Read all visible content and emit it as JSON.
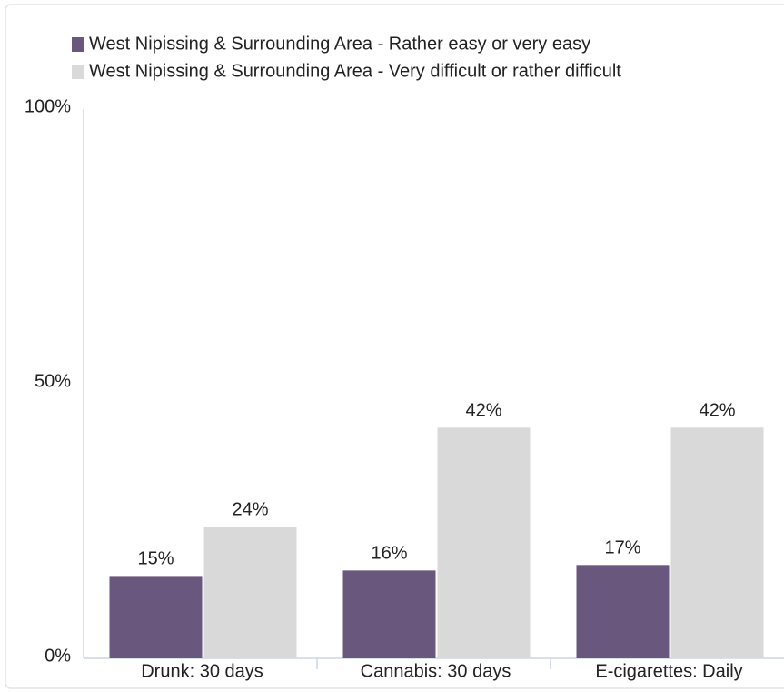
{
  "chart_data": {
    "type": "bar",
    "categories": [
      "Drunk: 30 days",
      "Cannabis: 30 days",
      "E-cigarettes: Daily"
    ],
    "series": [
      {
        "name": "West Nipissing & Surrounding Area - Rather easy or very easy",
        "color": "#6a577d",
        "values": [
          15,
          16,
          17
        ],
        "value_labels": [
          "15%",
          "16%",
          "17%"
        ]
      },
      {
        "name": "West Nipissing & Surrounding Area - Very difficult or rather difficult",
        "color": "#d9d9d9",
        "values": [
          24,
          42,
          42
        ],
        "value_labels": [
          "24%",
          "42%",
          "42%"
        ]
      }
    ],
    "ylim": [
      0,
      100
    ],
    "yticks": [
      {
        "value": 0,
        "label": "0%"
      },
      {
        "value": 50,
        "label": "50%"
      },
      {
        "value": 100,
        "label": "100%"
      }
    ],
    "legend": "top-left"
  }
}
